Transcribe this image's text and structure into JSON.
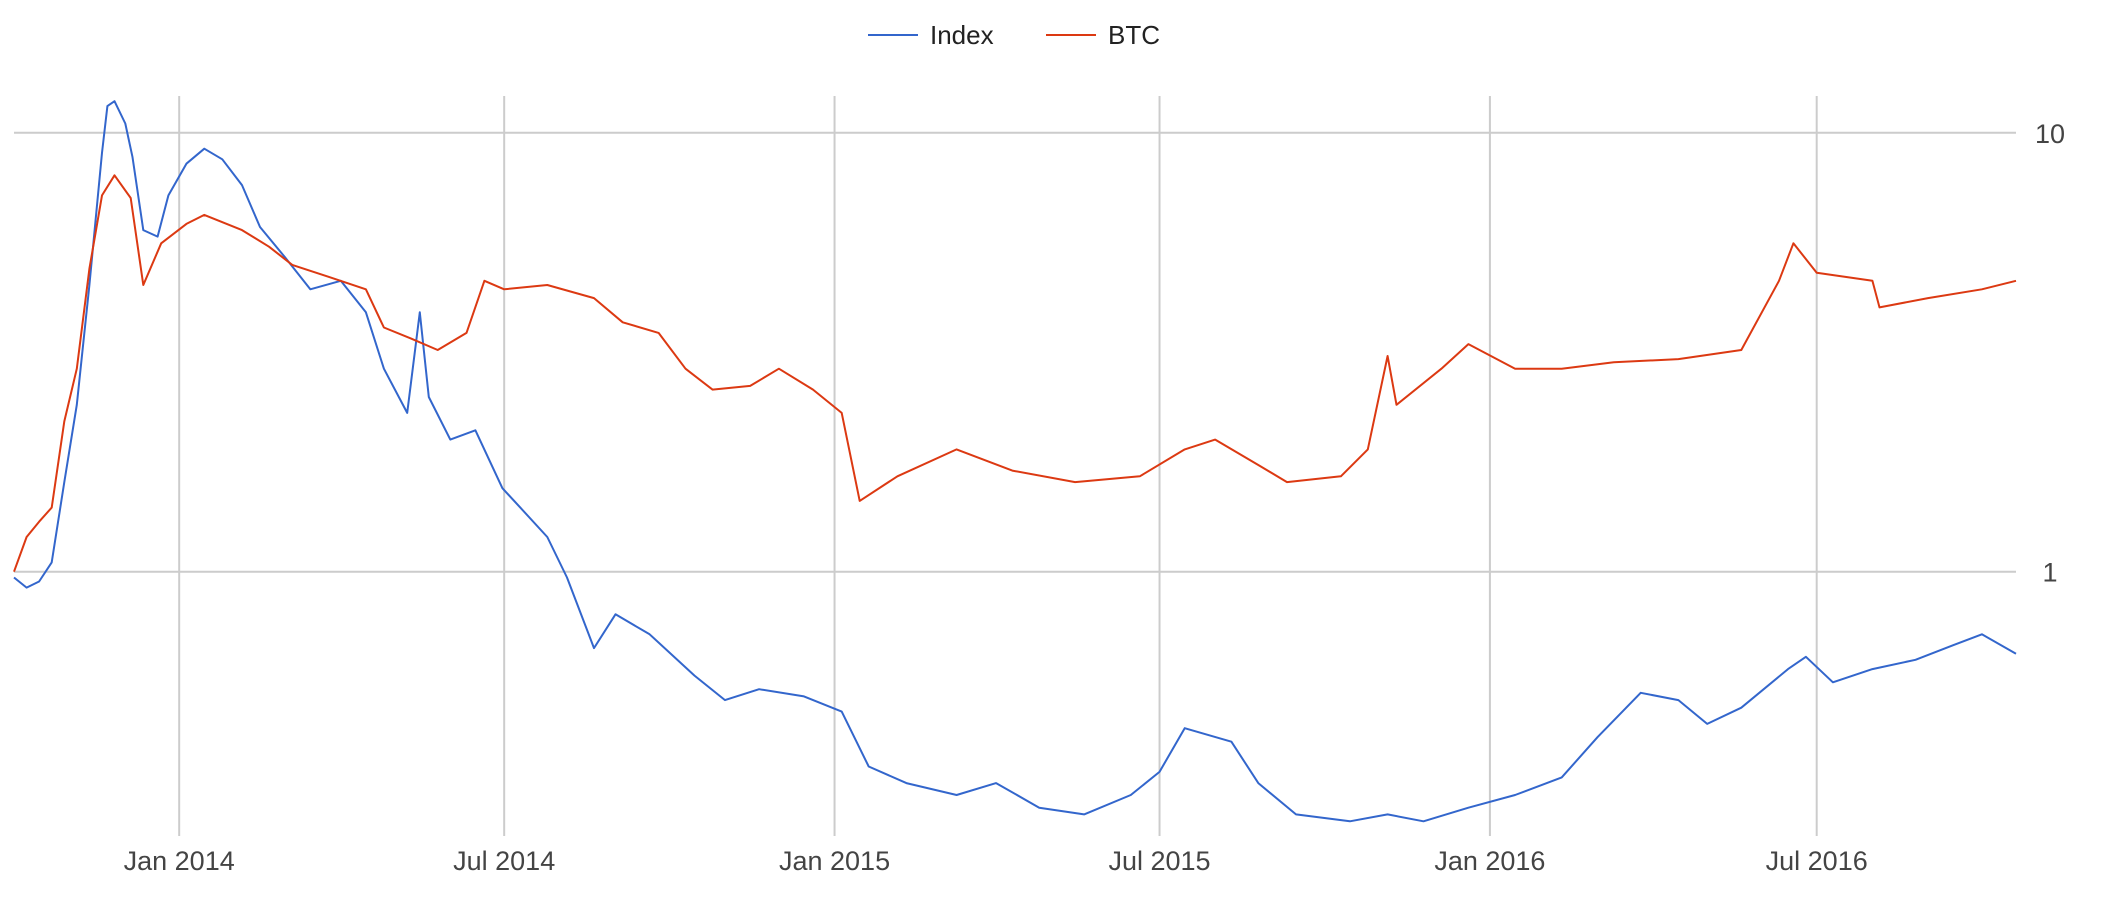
{
  "chart_data": {
    "type": "line",
    "legend_position": "top",
    "grid": true,
    "y_scale": "log",
    "y_ticks": [
      1,
      10
    ],
    "y_tick_labels": [
      "1",
      "10"
    ],
    "y_axis_side": "right",
    "ylim": [
      0.25,
      12
    ],
    "x_ticks": [
      "2014-01-01",
      "2014-07-01",
      "2015-01-01",
      "2015-07-01",
      "2016-01-01",
      "2016-07-01"
    ],
    "x_tick_labels": [
      "Jan 2014",
      "Jul 2014",
      "Jan 2015",
      "Jul 2015",
      "Jan 2016",
      "Jul 2016"
    ],
    "xlim": [
      "2013-10-01",
      "2016-10-20"
    ],
    "series": [
      {
        "name": "Index",
        "color": "#3366cc",
        "points": [
          [
            "2013-10-01",
            0.97
          ],
          [
            "2013-10-08",
            0.92
          ],
          [
            "2013-10-15",
            0.95
          ],
          [
            "2013-10-22",
            1.05
          ],
          [
            "2013-10-29",
            1.6
          ],
          [
            "2013-11-05",
            2.4
          ],
          [
            "2013-11-12",
            4.5
          ],
          [
            "2013-11-19",
            9.0
          ],
          [
            "2013-11-22",
            11.5
          ],
          [
            "2013-11-26",
            11.8
          ],
          [
            "2013-12-02",
            10.5
          ],
          [
            "2013-12-06",
            8.8
          ],
          [
            "2013-12-12",
            6.0
          ],
          [
            "2013-12-20",
            5.8
          ],
          [
            "2013-12-26",
            7.2
          ],
          [
            "2014-01-05",
            8.5
          ],
          [
            "2014-01-15",
            9.2
          ],
          [
            "2014-01-25",
            8.7
          ],
          [
            "2014-02-05",
            7.6
          ],
          [
            "2014-02-15",
            6.1
          ],
          [
            "2014-03-01",
            5.2
          ],
          [
            "2014-03-15",
            4.4
          ],
          [
            "2014-04-01",
            4.6
          ],
          [
            "2014-04-15",
            3.9
          ],
          [
            "2014-04-25",
            2.9
          ],
          [
            "2014-05-08",
            2.3
          ],
          [
            "2014-05-15",
            3.9
          ],
          [
            "2014-05-20",
            2.5
          ],
          [
            "2014-06-01",
            2.0
          ],
          [
            "2014-06-15",
            2.1
          ],
          [
            "2014-06-30",
            1.55
          ],
          [
            "2014-07-10",
            1.4
          ],
          [
            "2014-07-25",
            1.2
          ],
          [
            "2014-08-05",
            0.97
          ],
          [
            "2014-08-20",
            0.67
          ],
          [
            "2014-09-01",
            0.8
          ],
          [
            "2014-09-20",
            0.72
          ],
          [
            "2014-10-15",
            0.58
          ],
          [
            "2014-11-01",
            0.51
          ],
          [
            "2014-11-20",
            0.54
          ],
          [
            "2014-12-15",
            0.52
          ],
          [
            "2015-01-05",
            0.48
          ],
          [
            "2015-01-20",
            0.36
          ],
          [
            "2015-02-10",
            0.33
          ],
          [
            "2015-03-10",
            0.31
          ],
          [
            "2015-04-01",
            0.33
          ],
          [
            "2015-04-25",
            0.29
          ],
          [
            "2015-05-20",
            0.28
          ],
          [
            "2015-06-15",
            0.31
          ],
          [
            "2015-07-01",
            0.35
          ],
          [
            "2015-07-15",
            0.44
          ],
          [
            "2015-08-10",
            0.41
          ],
          [
            "2015-08-25",
            0.33
          ],
          [
            "2015-09-15",
            0.28
          ],
          [
            "2015-10-15",
            0.27
          ],
          [
            "2015-11-05",
            0.28
          ],
          [
            "2015-11-25",
            0.27
          ],
          [
            "2015-12-20",
            0.29
          ],
          [
            "2016-01-15",
            0.31
          ],
          [
            "2016-02-10",
            0.34
          ],
          [
            "2016-03-01",
            0.42
          ],
          [
            "2016-03-25",
            0.53
          ],
          [
            "2016-04-15",
            0.51
          ],
          [
            "2016-05-01",
            0.45
          ],
          [
            "2016-05-20",
            0.49
          ],
          [
            "2016-06-15",
            0.6
          ],
          [
            "2016-06-25",
            0.64
          ],
          [
            "2016-07-10",
            0.56
          ],
          [
            "2016-08-01",
            0.6
          ],
          [
            "2016-08-25",
            0.63
          ],
          [
            "2016-09-15",
            0.68
          ],
          [
            "2016-10-01",
            0.72
          ],
          [
            "2016-10-20",
            0.65
          ]
        ]
      },
      {
        "name": "BTC",
        "color": "#dc3912",
        "points": [
          [
            "2013-10-01",
            1.0
          ],
          [
            "2013-10-08",
            1.2
          ],
          [
            "2013-10-15",
            1.3
          ],
          [
            "2013-10-22",
            1.4
          ],
          [
            "2013-10-29",
            2.2
          ],
          [
            "2013-11-05",
            2.9
          ],
          [
            "2013-11-12",
            4.9
          ],
          [
            "2013-11-19",
            7.2
          ],
          [
            "2013-11-26",
            8.0
          ],
          [
            "2013-12-05",
            7.1
          ],
          [
            "2013-12-12",
            4.5
          ],
          [
            "2013-12-22",
            5.6
          ],
          [
            "2014-01-05",
            6.2
          ],
          [
            "2014-01-15",
            6.5
          ],
          [
            "2014-02-05",
            6.0
          ],
          [
            "2014-02-20",
            5.5
          ],
          [
            "2014-03-05",
            5.0
          ],
          [
            "2014-03-25",
            4.7
          ],
          [
            "2014-04-15",
            4.4
          ],
          [
            "2014-04-25",
            3.6
          ],
          [
            "2014-05-10",
            3.4
          ],
          [
            "2014-05-25",
            3.2
          ],
          [
            "2014-06-10",
            3.5
          ],
          [
            "2014-06-20",
            4.6
          ],
          [
            "2014-07-01",
            4.4
          ],
          [
            "2014-07-25",
            4.5
          ],
          [
            "2014-08-20",
            4.2
          ],
          [
            "2014-09-05",
            3.7
          ],
          [
            "2014-09-25",
            3.5
          ],
          [
            "2014-10-10",
            2.9
          ],
          [
            "2014-10-25",
            2.6
          ],
          [
            "2014-11-15",
            2.65
          ],
          [
            "2014-12-01",
            2.9
          ],
          [
            "2014-12-20",
            2.6
          ],
          [
            "2015-01-05",
            2.3
          ],
          [
            "2015-01-15",
            1.45
          ],
          [
            "2015-02-05",
            1.65
          ],
          [
            "2015-03-10",
            1.9
          ],
          [
            "2015-04-10",
            1.7
          ],
          [
            "2015-05-15",
            1.6
          ],
          [
            "2015-06-20",
            1.65
          ],
          [
            "2015-07-15",
            1.9
          ],
          [
            "2015-08-01",
            2.0
          ],
          [
            "2015-08-25",
            1.75
          ],
          [
            "2015-09-10",
            1.6
          ],
          [
            "2015-10-10",
            1.65
          ],
          [
            "2015-10-25",
            1.9
          ],
          [
            "2015-11-05",
            3.1
          ],
          [
            "2015-11-10",
            2.4
          ],
          [
            "2015-12-05",
            2.9
          ],
          [
            "2015-12-20",
            3.3
          ],
          [
            "2016-01-15",
            2.9
          ],
          [
            "2016-02-10",
            2.9
          ],
          [
            "2016-03-10",
            3.0
          ],
          [
            "2016-04-15",
            3.05
          ],
          [
            "2016-05-20",
            3.2
          ],
          [
            "2016-06-10",
            4.6
          ],
          [
            "2016-06-18",
            5.6
          ],
          [
            "2016-07-01",
            4.8
          ],
          [
            "2016-08-01",
            4.6
          ],
          [
            "2016-08-05",
            4.0
          ],
          [
            "2016-09-01",
            4.2
          ],
          [
            "2016-10-01",
            4.4
          ],
          [
            "2016-10-20",
            4.6
          ]
        ]
      }
    ]
  }
}
